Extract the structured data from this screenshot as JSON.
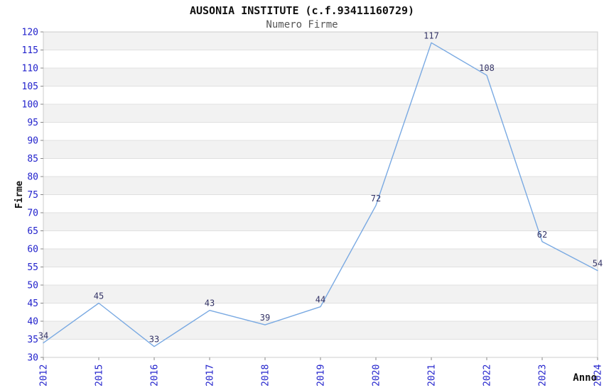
{
  "header": {
    "title": "AUSONIA INSTITUTE (c.f.93411160729)",
    "subtitle": "Numero Firme"
  },
  "chart_data": {
    "type": "line",
    "title": "AUSONIA INSTITUTE (c.f.93411160729)",
    "subtitle": "Numero Firme",
    "xlabel": "Anno",
    "ylabel": "Firme",
    "categories": [
      "2012",
      "2015",
      "2016",
      "2017",
      "2018",
      "2019",
      "2020",
      "2021",
      "2022",
      "2023",
      "2024"
    ],
    "series": [
      {
        "name": "Numero Firme",
        "values": [
          34,
          45,
          33,
          43,
          39,
          44,
          72,
          117,
          108,
          62,
          54
        ]
      }
    ],
    "point_labels": [
      "34",
      "45",
      "33",
      "43",
      "39",
      "44",
      "72",
      "117",
      "108",
      "62",
      "54"
    ],
    "ylim": [
      30,
      120
    ],
    "ytick_step": 5,
    "yticks": [
      30,
      35,
      40,
      45,
      50,
      55,
      60,
      65,
      70,
      75,
      80,
      85,
      90,
      95,
      100,
      105,
      110,
      115,
      120
    ],
    "grid": "alternating-horizontal-bands",
    "legend_position": "none",
    "x_tick_label_rotation_deg": -90,
    "colors": {
      "line": "#79a9e2",
      "tick_label": "#2222cc",
      "point_label": "#333366",
      "band_gray": "#f2f2f2",
      "band_white": "#ffffff",
      "gridline": "#e0e0e0",
      "plot_border": "#cccccc",
      "axis_tick": "#888888",
      "title": "#111111",
      "subtitle": "#555555",
      "axis_title": "#111111"
    }
  }
}
